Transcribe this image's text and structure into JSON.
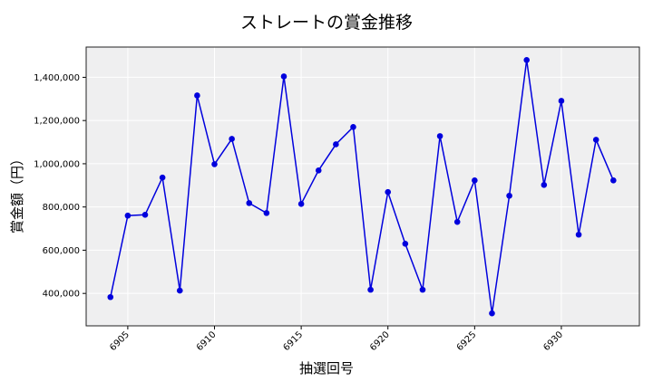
{
  "chart_data": {
    "type": "line",
    "title": "ストレートの賞金推移",
    "xlabel": "抽選回号",
    "ylabel": "賞金額（円）",
    "x": [
      6904,
      6905,
      6906,
      6907,
      6908,
      6909,
      6910,
      6911,
      6912,
      6913,
      6914,
      6915,
      6916,
      6917,
      6918,
      6919,
      6920,
      6921,
      6922,
      6923,
      6924,
      6925,
      6926,
      6927,
      6928,
      6929,
      6930,
      6931,
      6932,
      6933
    ],
    "series": [
      {
        "name": "ストレート",
        "color": "#0000dd",
        "values": [
          383000,
          760000,
          764000,
          936000,
          413000,
          1316000,
          998000,
          1115000,
          818000,
          772000,
          1404000,
          814000,
          969000,
          1090000,
          1170000,
          417000,
          869000,
          630000,
          417000,
          1128000,
          731000,
          923000,
          308000,
          852000,
          1480000,
          902000,
          1291000,
          672000,
          1111000,
          923000
        ]
      }
    ],
    "xticks": [
      "6905",
      "6910",
      "6915",
      "6920",
      "6925",
      "6930"
    ],
    "yticks": [
      "400,000",
      "600,000",
      "800,000",
      "1,000,000",
      "1,200,000",
      "1,400,000"
    ],
    "ylim": [
      250000,
      1540000
    ],
    "xlim": [
      6902.6,
      6934.5
    ],
    "grid": true,
    "legend": "none",
    "background": "#efeff0",
    "grid_color": "#ffffff"
  }
}
